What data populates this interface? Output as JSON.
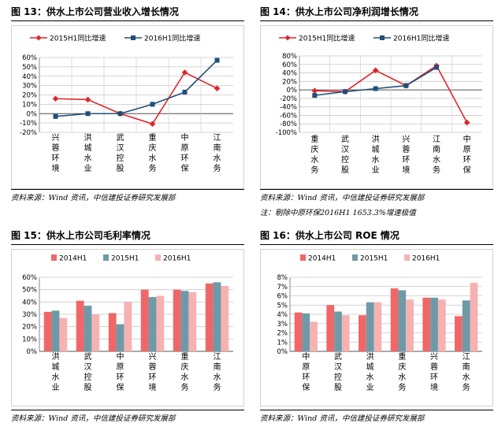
{
  "source_text": "资料来源：Wind 资讯，中信建投证券研究发展部",
  "chart_data": [
    {
      "id": "fig13",
      "type": "line",
      "title": "图 13：供水上市公司营业收入增长情况",
      "categories": [
        "兴蓉环境",
        "洪城水业",
        "武汉控股",
        "重庆水务",
        "中原环保",
        "江南水务"
      ],
      "series": [
        {
          "name": "2015H1同比增速",
          "color": "#e0252c",
          "marker": "diamond",
          "values": [
            16,
            15,
            0,
            -11,
            44,
            27
          ]
        },
        {
          "name": "2016H1同比增速",
          "color": "#1f4e79",
          "marker": "square",
          "values": [
            -3,
            0,
            0,
            10,
            23,
            57
          ]
        }
      ],
      "yticks": [
        "60%",
        "50%",
        "40%",
        "30%",
        "20%",
        "10%",
        "0%",
        "-10%",
        "-20%"
      ],
      "ylim": [
        -20,
        60
      ],
      "notes": []
    },
    {
      "id": "fig14",
      "type": "line",
      "title": "图 14：供水上市公司净利润增长情况",
      "categories": [
        "重庆水务",
        "武汉控股",
        "洪城水业",
        "兴蓉环境",
        "江南水务",
        "中原环保"
      ],
      "series": [
        {
          "name": "2015H1同比增速",
          "color": "#e0252c",
          "marker": "diamond",
          "values": [
            -2,
            -4,
            46,
            10,
            57,
            -77
          ]
        },
        {
          "name": "2016H1同比增速",
          "color": "#1f4e79",
          "marker": "square",
          "values": [
            -13,
            -4,
            3,
            10,
            53,
            null
          ]
        }
      ],
      "yticks": [
        "80%",
        "60%",
        "40%",
        "20%",
        "0%",
        "-20%",
        "-40%",
        "-60%",
        "-80%",
        "-100%"
      ],
      "ylim": [
        -100,
        80
      ],
      "notes": [
        "注：剔除中原环保2016H1 1653.3%增速极值"
      ]
    },
    {
      "id": "fig15",
      "type": "bar",
      "title": "图 15：供水上市公司毛利率情况",
      "categories": [
        "洪城水业",
        "武汉控股",
        "中原环保",
        "兴蓉环境",
        "重庆水务",
        "江南水务"
      ],
      "series": [
        {
          "name": "2014H1",
          "color": "#f06768",
          "values": [
            32,
            41,
            31,
            50,
            50,
            55
          ]
        },
        {
          "name": "2015H1",
          "color": "#6e9aa8",
          "values": [
            33,
            37,
            22,
            44,
            49,
            56
          ]
        },
        {
          "name": "2016H1",
          "color": "#f6b2b2",
          "values": [
            27,
            30,
            40,
            45,
            48,
            53
          ]
        }
      ],
      "yticks": [
        "60%",
        "50%",
        "40%",
        "30%",
        "20%",
        "10%",
        "0%"
      ],
      "ylim": [
        0,
        60
      ],
      "notes": []
    },
    {
      "id": "fig16",
      "type": "bar",
      "title": "图 16：供水上市公司 ROE 情况",
      "categories": [
        "中原环保",
        "武汉控股",
        "洪城水业",
        "重庆水务",
        "兴蓉环境",
        "江南水务"
      ],
      "series": [
        {
          "name": "2014H1",
          "color": "#f06768",
          "values": [
            4.2,
            5.0,
            3.9,
            6.8,
            5.8,
            3.8
          ]
        },
        {
          "name": "2015H1",
          "color": "#6e9aa8",
          "values": [
            4.1,
            4.3,
            5.3,
            6.6,
            5.8,
            5.5
          ]
        },
        {
          "name": "2016H1",
          "color": "#f6b2b2",
          "values": [
            3.2,
            3.9,
            5.3,
            5.6,
            5.6,
            7.4
          ]
        }
      ],
      "yticks": [
        "8%",
        "7%",
        "6%",
        "5%",
        "4%",
        "3%",
        "2%",
        "1%",
        "0%"
      ],
      "ylim": [
        0,
        8
      ],
      "notes": []
    }
  ]
}
